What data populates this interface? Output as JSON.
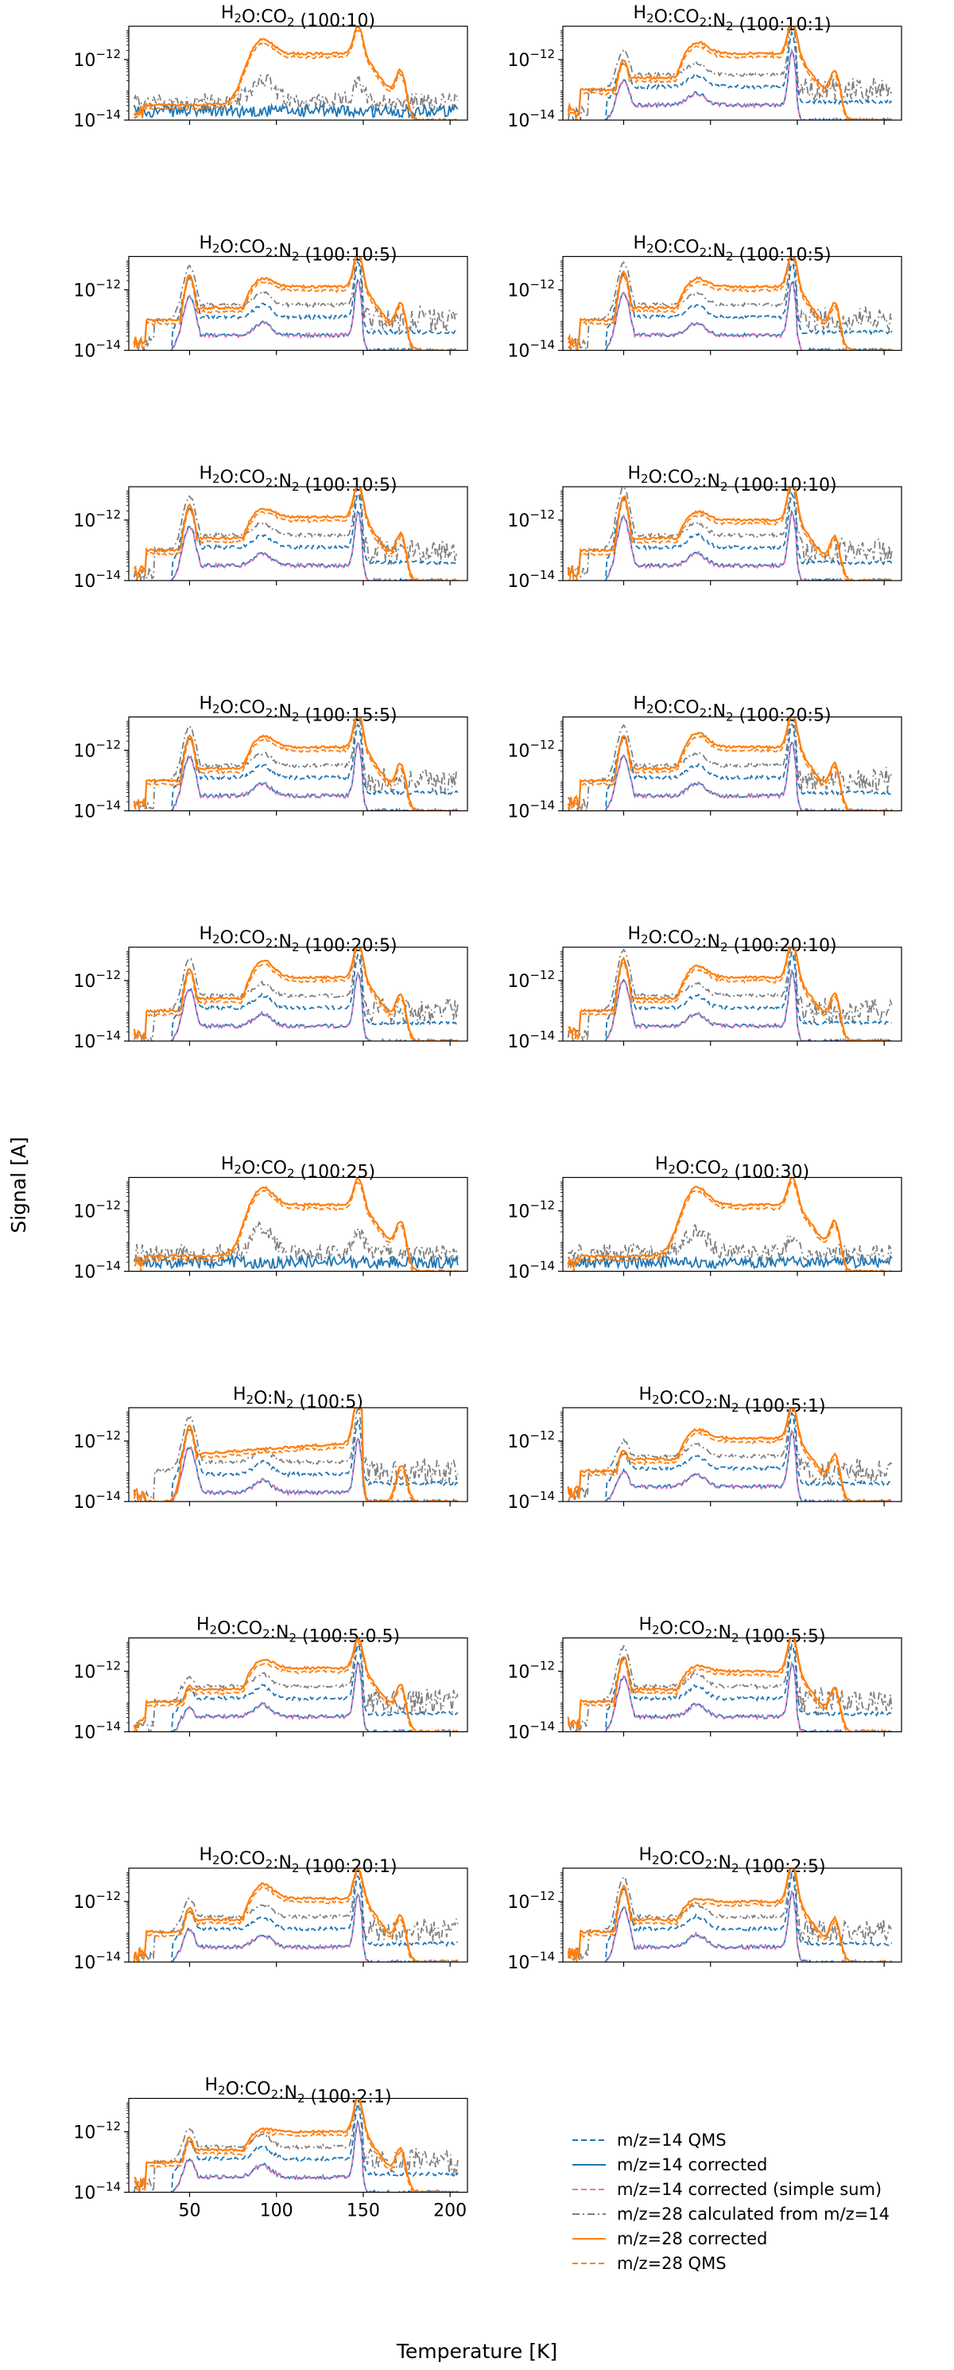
{
  "chart_data": {
    "type": "line",
    "figure_ylabel": "Signal [A]",
    "figure_xlabel": "Temperature [K]",
    "x_axis": {
      "range": [
        15,
        210
      ],
      "ticks": [
        50,
        100,
        150,
        200
      ],
      "tick_labels": [
        "50",
        "100",
        "150",
        "200"
      ],
      "shown_on": "bottom-left panel only"
    },
    "y_axis": {
      "scale": "log",
      "range_exp": [
        -14,
        -10.9
      ],
      "ticks": [
        {
          "base": "10",
          "exp": "−14"
        },
        {
          "base": "10",
          "exp": "−12"
        }
      ]
    },
    "legend": {
      "placement": "bottom-right",
      "entries": [
        {
          "key": "qms14",
          "label": "m/z=14 QMS",
          "color": "#1f77b4",
          "style": "dashed"
        },
        {
          "key": "corr14",
          "label": "m/z=14 corrected",
          "color": "#1f77b4",
          "style": "solid"
        },
        {
          "key": "simple14",
          "label": "m/z=14 corrected (simple sum)",
          "color": "#e377c2",
          "style": "dashed"
        },
        {
          "key": "calc28",
          "label": "m/z=28 calculated from m/z=14",
          "color": "#7f7f7f",
          "style": "dashdot"
        },
        {
          "key": "corr28",
          "label": "m/z=28 corrected",
          "color": "#ff7f0e",
          "style": "solid"
        },
        {
          "key": "qms28",
          "label": "m/z=28 QMS",
          "color": "#ff7f0e",
          "style": "dashed"
        }
      ]
    },
    "panels": [
      {
        "title": "H2O:CO2 (100:10)",
        "base": "H",
        "sub1": "2",
        "mid": "O:CO",
        "sub2": "2",
        "mid2": "",
        "sub3": "",
        "ratio": " (100:10)",
        "has_n2": false,
        "co2": 10,
        "n2": 0,
        "peak_exp": {
          "h2o_desorb": -12.6,
          "co2_peak": -11.3,
          "plateau": -11.8,
          "crystal_peak": -11.3
        }
      },
      {
        "title": "H2O:CO2:N2 (100:10:1)",
        "base": "H",
        "sub1": "2",
        "mid": "O:CO",
        "sub2": "2",
        "mid2": ":N",
        "sub3": "2",
        "ratio": " (100:10:1)",
        "has_n2": true,
        "co2": 10,
        "n2": 1,
        "peak_exp": {
          "n2_peak": -12.0,
          "co2_peak": -11.4,
          "plateau": -11.8,
          "crystal_peak": -11.1
        }
      },
      {
        "title": "H2O:CO2:N2 (100:10:5)",
        "base": "H",
        "sub1": "2",
        "mid": "O:CO",
        "sub2": "2",
        "mid2": ":N",
        "sub3": "2",
        "ratio": " (100:10:5)",
        "has_n2": true,
        "co2": 10,
        "n2": 5,
        "peak_exp": {
          "n2_peak": -11.5,
          "co2_peak": -11.6,
          "plateau": -11.9,
          "crystal_peak": -11.1
        }
      },
      {
        "title": "H2O:CO2:N2 (100:10:5)",
        "base": "H",
        "sub1": "2",
        "mid": "O:CO",
        "sub2": "2",
        "mid2": ":N",
        "sub3": "2",
        "ratio": " (100:10:5)",
        "has_n2": true,
        "co2": 10,
        "n2": 5,
        "peak_exp": {
          "n2_peak": -11.4,
          "co2_peak": -11.6,
          "plateau": -11.9,
          "crystal_peak": -11.1
        }
      },
      {
        "title": "H2O:CO2:N2 (100:10:5)",
        "base": "H",
        "sub1": "2",
        "mid": "O:CO",
        "sub2": "2",
        "mid2": ":N",
        "sub3": "2",
        "ratio": " (100:10:5)",
        "has_n2": true,
        "co2": 10,
        "n2": 5,
        "peak_exp": {
          "n2_peak": -11.5,
          "co2_peak": -11.6,
          "plateau": -11.9,
          "crystal_peak": -11.1
        }
      },
      {
        "title": "H2O:CO2:N2 (100:10:10)",
        "base": "H",
        "sub1": "2",
        "mid": "O:CO",
        "sub2": "2",
        "mid2": ":N",
        "sub3": "2",
        "ratio": " (100:10:10)",
        "has_n2": true,
        "co2": 10,
        "n2": 10,
        "peak_exp": {
          "n2_peak": -11.2,
          "co2_peak": -11.7,
          "plateau": -12.0,
          "crystal_peak": -11.0
        }
      },
      {
        "title": "H2O:CO2:N2 (100:15:5)",
        "base": "H",
        "sub1": "2",
        "mid": "O:CO",
        "sub2": "2",
        "mid2": ":N",
        "sub3": "2",
        "ratio": " (100:15:5)",
        "has_n2": true,
        "co2": 15,
        "n2": 5,
        "peak_exp": {
          "n2_peak": -11.5,
          "co2_peak": -11.5,
          "plateau": -11.9,
          "crystal_peak": -11.1
        }
      },
      {
        "title": "H2O:CO2:N2 (100:20:5)",
        "base": "H",
        "sub1": "2",
        "mid": "O:CO",
        "sub2": "2",
        "mid2": ":N",
        "sub3": "2",
        "ratio": " (100:20:5)",
        "has_n2": true,
        "co2": 20,
        "n2": 5,
        "peak_exp": {
          "n2_peak": -11.5,
          "co2_peak": -11.4,
          "plateau": -11.9,
          "crystal_peak": -11.1
        }
      },
      {
        "title": "H2O:CO2:N2 (100:20:5)",
        "base": "H",
        "sub1": "2",
        "mid": "O:CO",
        "sub2": "2",
        "mid2": ":N",
        "sub3": "2",
        "ratio": " (100:20:5)",
        "has_n2": true,
        "co2": 20,
        "n2": 5,
        "peak_exp": {
          "n2_peak": -11.6,
          "co2_peak": -11.3,
          "plateau": -11.9,
          "crystal_peak": -11.1
        }
      },
      {
        "title": "H2O:CO2:N2 (100:20:10)",
        "base": "H",
        "sub1": "2",
        "mid": "O:CO",
        "sub2": "2",
        "mid2": ":N",
        "sub3": "2",
        "ratio": " (100:20:10)",
        "has_n2": true,
        "co2": 20,
        "n2": 10,
        "peak_exp": {
          "n2_peak": -11.3,
          "co2_peak": -11.5,
          "plateau": -11.9,
          "crystal_peak": -11.0
        }
      },
      {
        "title": "H2O:CO2 (100:25)",
        "base": "H",
        "sub1": "2",
        "mid": "O:CO",
        "sub2": "2",
        "mid2": "",
        "sub3": "",
        "ratio": " (100:25)",
        "has_n2": false,
        "co2": 25,
        "n2": 0,
        "peak_exp": {
          "co2_peak": -11.2,
          "plateau": -11.8,
          "crystal_peak": -11.3
        }
      },
      {
        "title": "H2O:CO2 (100:30)",
        "base": "H",
        "sub1": "2",
        "mid": "O:CO",
        "sub2": "2",
        "mid2": "",
        "sub3": "",
        "ratio": " (100:30)",
        "has_n2": false,
        "co2": 30,
        "n2": 0,
        "peak_exp": {
          "co2_peak": -11.2,
          "plateau": -11.8,
          "crystal_peak": -11.3
        }
      },
      {
        "title": "H2O:N2 (100:5)",
        "base": "H",
        "sub1": "2",
        "mid": "O:N",
        "sub2": "2",
        "mid2": "",
        "sub3": "",
        "ratio": " (100:5)",
        "has_n2": true,
        "co2": 0,
        "n2": 5,
        "peak_exp": {
          "n2_peak": -11.5,
          "plateau": -12.2,
          "crystal_peak": -11.0
        }
      },
      {
        "title": "H2O:CO2:N2 (100:5:1)",
        "base": "H",
        "sub1": "2",
        "mid": "O:CO",
        "sub2": "2",
        "mid2": ":N",
        "sub3": "2",
        "ratio": " (100:5:1)",
        "has_n2": true,
        "co2": 5,
        "n2": 1,
        "peak_exp": {
          "n2_peak": -12.3,
          "co2_peak": -11.6,
          "plateau": -11.9,
          "crystal_peak": -11.2
        }
      },
      {
        "title": "H2O:CO2:N2 (100:5:0.5)",
        "base": "H",
        "sub1": "2",
        "mid": "O:CO",
        "sub2": "2",
        "mid2": ":N",
        "sub3": "2",
        "ratio": " (100:5:0.5)",
        "has_n2": true,
        "co2": 5,
        "n2": 0.5,
        "peak_exp": {
          "n2_peak": -12.5,
          "co2_peak": -11.6,
          "plateau": -11.9,
          "crystal_peak": -11.3
        }
      },
      {
        "title": "H2O:CO2:N2 (100:5:5)",
        "base": "H",
        "sub1": "2",
        "mid": "O:CO",
        "sub2": "2",
        "mid2": ":N",
        "sub3": "2",
        "ratio": " (100:5:5)",
        "has_n2": true,
        "co2": 5,
        "n2": 5,
        "peak_exp": {
          "n2_peak": -11.5,
          "co2_peak": -11.8,
          "plateau": -12.0,
          "crystal_peak": -11.1
        }
      },
      {
        "title": "H2O:CO2:N2 (100:20:1)",
        "base": "H",
        "sub1": "2",
        "mid": "O:CO",
        "sub2": "2",
        "mid2": ":N",
        "sub3": "2",
        "ratio": " (100:20:1)",
        "has_n2": true,
        "co2": 20,
        "n2": 1,
        "peak_exp": {
          "n2_peak": -12.2,
          "co2_peak": -11.4,
          "plateau": -11.9,
          "crystal_peak": -11.3
        }
      },
      {
        "title": "H2O:CO2:N2 (100:2:5)",
        "base": "H",
        "sub1": "2",
        "mid": "O:CO",
        "sub2": "2",
        "mid2": ":N",
        "sub3": "2",
        "ratio": " (100:2:5)",
        "has_n2": true,
        "co2": 2,
        "n2": 5,
        "peak_exp": {
          "n2_peak": -11.5,
          "co2_peak": -11.9,
          "plateau": -12.0,
          "crystal_peak": -11.1
        }
      },
      {
        "title": "H2O:CO2:N2 (100:2:1)",
        "base": "H",
        "sub1": "2",
        "mid": "O:CO",
        "sub2": "2",
        "mid2": ":N",
        "sub3": "2",
        "ratio": " (100:2:1)",
        "has_n2": true,
        "co2": 2,
        "n2": 1,
        "peak_exp": {
          "n2_peak": -12.2,
          "co2_peak": -11.9,
          "plateau": -12.0,
          "crystal_peak": -11.2
        }
      }
    ]
  }
}
